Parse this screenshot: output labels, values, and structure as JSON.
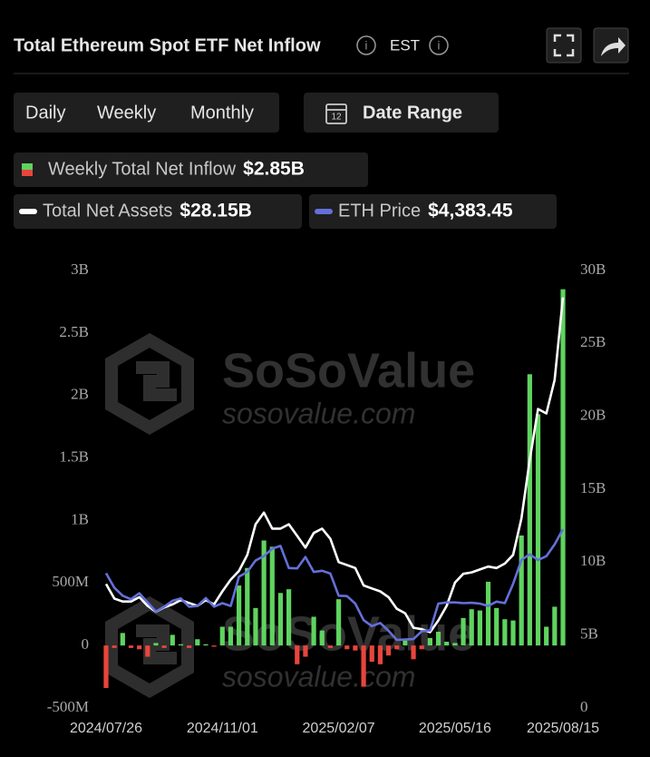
{
  "ui": {
    "title": "Total Ethereum Spot ETF Net Inflow",
    "timezone": "EST",
    "periods": [
      "Daily",
      "Weekly",
      "Monthly"
    ],
    "active_period": 1,
    "date_range": "Date Range"
  },
  "chart_data": {
    "type": "bar",
    "watermark": [
      "SoSoValue",
      "sosovalue.com"
    ],
    "categories": [
      "2024/07/26",
      null,
      null,
      null,
      null,
      null,
      null,
      null,
      null,
      null,
      null,
      null,
      null,
      null,
      "2024/11/01",
      null,
      null,
      null,
      null,
      null,
      null,
      null,
      null,
      null,
      null,
      null,
      null,
      null,
      "2025/02/07",
      null,
      null,
      null,
      null,
      null,
      null,
      null,
      null,
      null,
      null,
      null,
      null,
      null,
      "2025/05/16",
      null,
      null,
      null,
      null,
      null,
      null,
      null,
      null,
      null,
      null,
      null,
      null,
      "2025/08/15"
    ],
    "series": [
      {
        "name": "Weekly Total Net Inflow",
        "type": "bar",
        "color": "#5fd35f",
        "negative_color": "#e8453c",
        "current_label": "$2.85B",
        "values": [
          -340,
          -20,
          100,
          -20,
          -30,
          -90,
          20,
          -20,
          85,
          10,
          -20,
          50,
          10,
          -10,
          150,
          150,
          480,
          620,
          300,
          840,
          790,
          420,
          450,
          -150,
          -90,
          230,
          120,
          -20,
          370,
          -30,
          -40,
          -330,
          -130,
          -150,
          -80,
          -30,
          40,
          -110,
          -30,
          60,
          110,
          30,
          20,
          220,
          290,
          280,
          510,
          300,
          210,
          200,
          880,
          2170,
          1850,
          150,
          310,
          2850
        ]
      },
      {
        "name": "Total Net Assets",
        "type": "line",
        "axis": "y2",
        "color": "#ffffff",
        "current_label": "$28.15B",
        "values": [
          8.5,
          7.5,
          7.3,
          7.3,
          7.6,
          7.0,
          6.6,
          6.9,
          7.1,
          7.4,
          7.2,
          7.0,
          7.4,
          7.1,
          8.0,
          8.8,
          9.4,
          10.5,
          12.6,
          13.4,
          12.3,
          12.3,
          12.6,
          11.8,
          11.0,
          12.0,
          12.3,
          11.6,
          10.0,
          9.8,
          9.6,
          8.4,
          8.2,
          8.0,
          7.6,
          6.8,
          6.5,
          5.5,
          5.4,
          5.2,
          6.0,
          7.0,
          8.6,
          9.2,
          9.3,
          9.5,
          9.7,
          9.6,
          9.9,
          10.5,
          13.0,
          17.0,
          20.5,
          20.2,
          22.5,
          28.15
        ]
      },
      {
        "name": "ETH Price",
        "type": "line",
        "axis": "y3",
        "color": "#6470d8",
        "current_label": "$4,383.45",
        "values": [
          3270,
          2900,
          2700,
          2610,
          2760,
          2530,
          2300,
          2420,
          2570,
          2630,
          2420,
          2440,
          2640,
          2420,
          2510,
          2440,
          3180,
          3300,
          3590,
          3700,
          3890,
          3960,
          3400,
          3390,
          3680,
          3300,
          3330,
          3260,
          2700,
          2690,
          2500,
          2080,
          1930,
          2010,
          1810,
          1580,
          1590,
          1600,
          1800,
          1820,
          2500,
          2530,
          2530,
          2510,
          2520,
          2500,
          2440,
          2550,
          2510,
          3000,
          3600,
          3750,
          3600,
          3700,
          4000,
          4383.45
        ]
      }
    ],
    "ylim": [
      -500,
      3000
    ],
    "yticks": [
      {
        "value": -500,
        "label": "-500M"
      },
      0,
      {
        "value": 500,
        "label": "500M"
      },
      {
        "value": 1000,
        "label": "1B"
      },
      {
        "value": 1500,
        "label": "1.5B"
      },
      {
        "value": 2000,
        "label": "2B"
      },
      {
        "value": 2500,
        "label": "2.5B"
      },
      {
        "value": 3000,
        "label": "3B"
      }
    ],
    "y2lim": [
      0,
      30
    ],
    "y2ticks": [
      0,
      {
        "value": 5,
        "label": "5B"
      },
      {
        "value": 10,
        "label": "10B"
      },
      {
        "value": 15,
        "label": "15B"
      },
      {
        "value": 20,
        "label": "20B"
      },
      {
        "value": 25,
        "label": "25B"
      },
      {
        "value": 30,
        "label": "30B"
      }
    ]
  }
}
